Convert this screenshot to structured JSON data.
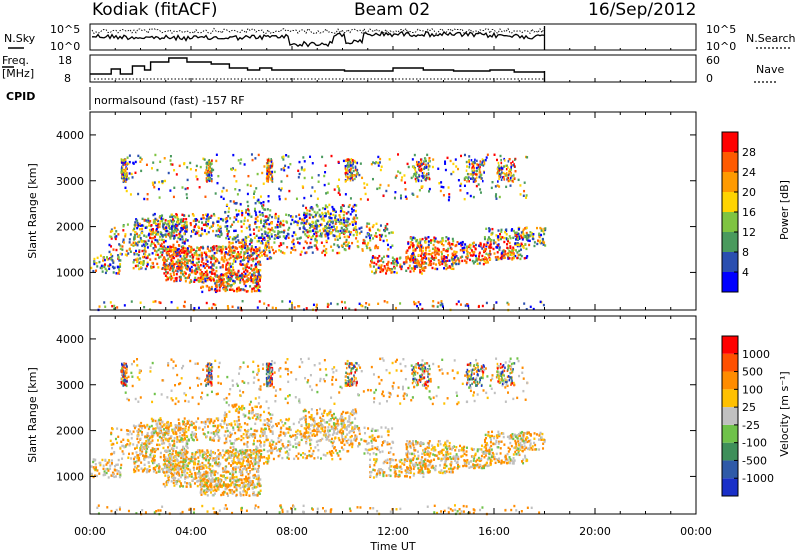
{
  "header": {
    "station": "Kodiak (fitACF)",
    "beam": "Beam 02",
    "date": "16/Sep/2012"
  },
  "panels": {
    "nsky": {
      "left_label": "N.Sky",
      "right_label": "N.Search",
      "yticks_left": [
        "10^5",
        "10^0"
      ],
      "yticks_right": [
        "10^5",
        "10^0"
      ]
    },
    "freq": {
      "left_label_1": "Freq.",
      "left_label_2": "[MHz]",
      "right_label": "Nave",
      "yticks_left": [
        "18",
        "8"
      ],
      "yticks_right": [
        "60",
        "0"
      ]
    },
    "cpid": {
      "label": "CPID",
      "text": "normalsound (fast) -157 RF"
    }
  },
  "chart_data": [
    {
      "type": "heatmap",
      "name": "power",
      "ylabel": "Slant Range [km]",
      "xlabel": "Time UT",
      "xlim": [
        "00:00",
        "00:00"
      ],
      "ylim": [
        180,
        4500
      ],
      "yticks": [
        "1000",
        "2000",
        "3000",
        "4000"
      ],
      "xticks": [
        "00:00",
        "04:00",
        "08:00",
        "12:00",
        "16:00",
        "20:00",
        "00:00"
      ],
      "colorbar": {
        "label": "Power [dB]",
        "ticks": [
          "4",
          "8",
          "12",
          "16",
          "20",
          "24",
          "28"
        ],
        "colors": [
          "#0000ff",
          "#2a4fb0",
          "#4a9a5e",
          "#7fc441",
          "#ffd400",
          "#ff9a00",
          "#ff5a00",
          "#ff0000"
        ]
      }
    },
    {
      "type": "heatmap",
      "name": "velocity",
      "ylabel": "Slant Range [km]",
      "xlabel": "Time UT",
      "xlim": [
        "00:00",
        "00:00"
      ],
      "ylim": [
        180,
        4500
      ],
      "yticks": [
        "1000",
        "2000",
        "3000",
        "4000"
      ],
      "xticks": [
        "00:00",
        "04:00",
        "08:00",
        "12:00",
        "16:00",
        "20:00",
        "00:00"
      ],
      "colorbar": {
        "label": "Velocity [m s⁻¹]",
        "ticks": [
          "1000",
          "500",
          "100",
          "25",
          "-25",
          "-100",
          "-500",
          "-1000"
        ],
        "colors": [
          "#1a30c8",
          "#2f5aa8",
          "#3e8f5a",
          "#6fc24a",
          "#c0c0c0",
          "#ffc000",
          "#ff8c00",
          "#ff5000",
          "#ff0000"
        ]
      }
    }
  ],
  "xaxis": {
    "title": "Time UT",
    "ticks": [
      "00:00",
      "04:00",
      "08:00",
      "12:00",
      "16:00",
      "20:00",
      "00:00"
    ]
  }
}
